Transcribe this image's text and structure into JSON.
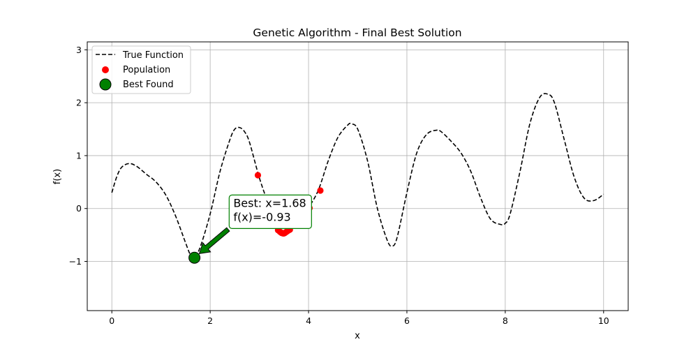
{
  "chart_data": {
    "type": "line",
    "title": "Genetic Algorithm - Final Best Solution",
    "xlabel": "x",
    "ylabel": "f(x)",
    "xlim": [
      -0.5,
      10.5
    ],
    "ylim": [
      -1.93,
      3.15
    ],
    "xticks": [
      0,
      2,
      4,
      6,
      8,
      10
    ],
    "xtick_labels": [
      "0",
      "2",
      "4",
      "6",
      "8",
      "10"
    ],
    "yticks": [
      -1,
      0,
      1,
      2,
      3
    ],
    "ytick_labels": [
      "−1",
      "0",
      "1",
      "2",
      "3"
    ],
    "grid": true,
    "legend": {
      "position": "upper-left",
      "entries": [
        "True Function",
        "Population",
        "Best Found"
      ]
    },
    "series": [
      {
        "name": "True Function",
        "style": "dashed",
        "color": "#000000",
        "x": [
          0,
          0.1,
          0.2,
          0.35,
          0.5,
          0.7,
          0.9,
          1.1,
          1.3,
          1.5,
          1.6,
          1.68,
          1.8,
          2.0,
          2.2,
          2.4,
          2.5,
          2.6,
          2.7,
          2.8,
          3.0,
          3.2,
          3.4,
          3.5,
          3.6,
          3.8,
          4.0,
          4.2,
          4.4,
          4.6,
          4.8,
          4.87,
          5.0,
          5.2,
          5.4,
          5.6,
          5.7,
          5.8,
          6.0,
          6.2,
          6.4,
          6.6,
          6.7,
          6.9,
          7.1,
          7.3,
          7.5,
          7.7,
          7.9,
          8.0,
          8.1,
          8.3,
          8.5,
          8.7,
          8.87,
          9.0,
          9.2,
          9.4,
          9.6,
          9.8,
          10.0
        ],
        "y": [
          0.3,
          0.6,
          0.78,
          0.85,
          0.8,
          0.65,
          0.5,
          0.25,
          -0.15,
          -0.65,
          -0.88,
          -0.93,
          -0.72,
          -0.1,
          0.7,
          1.3,
          1.5,
          1.53,
          1.45,
          1.25,
          0.58,
          0.05,
          -0.38,
          -0.45,
          -0.42,
          -0.2,
          0.02,
          0.35,
          0.9,
          1.35,
          1.58,
          1.6,
          1.5,
          0.9,
          0.0,
          -0.6,
          -0.71,
          -0.55,
          0.3,
          1.05,
          1.4,
          1.48,
          1.45,
          1.27,
          1.05,
          0.7,
          0.2,
          -0.2,
          -0.3,
          -0.28,
          -0.1,
          0.7,
          1.6,
          2.1,
          2.16,
          2.0,
          1.3,
          0.6,
          0.2,
          0.15,
          0.27
        ]
      },
      {
        "name": "Population",
        "style": "scatter",
        "color": "#ff0000",
        "x": [
          2.97,
          3.38,
          3.42,
          3.45,
          3.48,
          3.5,
          3.52,
          3.55,
          3.58,
          3.62,
          4.02,
          4.24
        ],
        "y": [
          0.63,
          -0.41,
          -0.44,
          -0.46,
          -0.47,
          -0.47,
          -0.46,
          -0.44,
          -0.42,
          -0.4,
          0.01,
          0.34
        ]
      },
      {
        "name": "Best Found",
        "style": "marker",
        "color": "#008000",
        "x": [
          1.68
        ],
        "y": [
          -0.93
        ]
      }
    ],
    "annotation": {
      "line1": "Best: x=1.68",
      "line2": "f(x)=-0.93",
      "point": [
        1.68,
        -0.93
      ],
      "text_anchor": [
        2.4,
        -0.18
      ]
    }
  }
}
